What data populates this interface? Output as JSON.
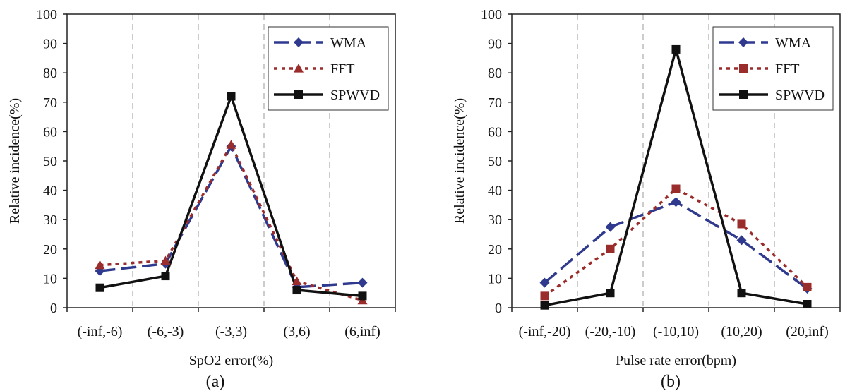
{
  "chart_data": [
    {
      "type": "line",
      "title": "",
      "caption": "(a)",
      "xlabel": "SpO2 error(%)",
      "ylabel": "Relative incidence(%)",
      "ylim": [
        0,
        100
      ],
      "yticks": [
        "0",
        "10",
        "20",
        "30",
        "40",
        "50",
        "60",
        "70",
        "80",
        "90",
        "100"
      ],
      "categories": [
        "(-inf,-6)",
        "(-6,-3)",
        "(-3,3)",
        "(3,6)",
        "(6,inf)"
      ],
      "grid": "vertical-dashed",
      "legend_position": "top-right",
      "series": [
        {
          "name": "WMA",
          "values": [
            12.5,
            15,
            55,
            7,
            8.5
          ],
          "color": "#2f3a8f",
          "marker": "diamond",
          "line": "long-dash"
        },
        {
          "name": "FFT",
          "values": [
            14.5,
            16,
            55.5,
            9,
            2.5
          ],
          "color": "#9b2c2c",
          "marker": "triangle",
          "line": "dotted"
        },
        {
          "name": "SPWVD",
          "values": [
            6.8,
            10.8,
            72,
            6,
            4
          ],
          "color": "#111111",
          "marker": "square",
          "line": "solid"
        }
      ]
    },
    {
      "type": "line",
      "title": "",
      "caption": "(b)",
      "xlabel": "Pulse rate error(bpm)",
      "ylabel": "Relative incidence(%)",
      "ylim": [
        0,
        100
      ],
      "yticks": [
        "0",
        "10",
        "20",
        "30",
        "40",
        "50",
        "60",
        "70",
        "80",
        "90",
        "100"
      ],
      "categories": [
        "(-inf,-20)",
        "(-20,-10)",
        "(-10,10)",
        "(10,20)",
        "(20,inf)"
      ],
      "grid": "vertical-dashed",
      "legend_position": "top-right",
      "series": [
        {
          "name": "WMA",
          "values": [
            8.5,
            27.5,
            36,
            23,
            6.5
          ],
          "color": "#2f3a8f",
          "marker": "diamond",
          "line": "long-dash"
        },
        {
          "name": "FFT",
          "values": [
            4,
            20,
            40.5,
            28.5,
            7
          ],
          "color": "#9b2c2c",
          "marker": "square",
          "line": "dotted"
        },
        {
          "name": "SPWVD",
          "values": [
            0.8,
            5,
            88,
            5,
            1.2
          ],
          "color": "#111111",
          "marker": "square",
          "line": "solid"
        }
      ]
    }
  ]
}
